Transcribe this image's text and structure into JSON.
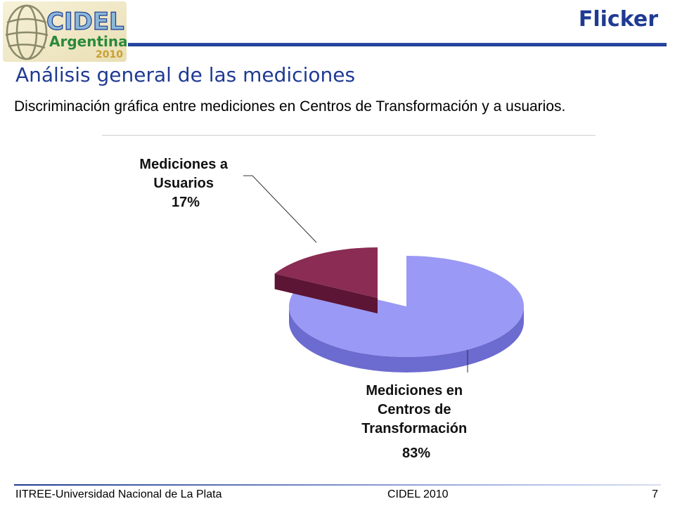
{
  "logo": {
    "word1": "CIDEL",
    "word2": "Argentina",
    "year": "2010"
  },
  "header": {
    "title": "Flicker"
  },
  "slide": {
    "title": "Análisis general de las mediciones",
    "subtitle": "Discriminación gráfica entre mediciones en Centros de Transformación y a usuarios."
  },
  "chart_data": {
    "type": "pie",
    "style": "3d-exploded",
    "slices": [
      {
        "label_lines": [
          "Mediciones en",
          "Centros de",
          "Transformación"
        ],
        "percent_label": "83%",
        "value": 83,
        "color": "#9a99f5",
        "side_color": "#6c6bd0"
      },
      {
        "label_lines": [
          "Mediciones a",
          "Usuarios"
        ],
        "percent_label": "17%",
        "value": 17,
        "color": "#8a2c54",
        "side_color": "#4a1028"
      }
    ]
  },
  "footer": {
    "left": "IITREE-Universidad Nacional de La Plata",
    "center": "CIDEL 2010",
    "page": "7"
  },
  "colors": {
    "accent": "#1f3a93",
    "logo_green": "#2a8a3a",
    "logo_gold": "#c8a030"
  }
}
